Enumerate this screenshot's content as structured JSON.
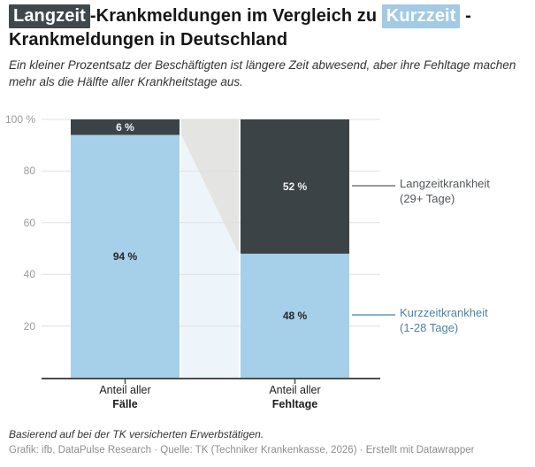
{
  "title": {
    "highlight_dark": "Langzeit",
    "after_dark": "-Krankmeldungen im Vergleich zu",
    "highlight_blue": "Kurzzeit",
    "after_blue": "-",
    "line2": "Krankmeldungen in Deutschland"
  },
  "subtitle": "Ein kleiner Prozentsatz der Beschäftigten ist längere Zeit abwesend, aber ihre Fehltage machen mehr als die Hälfte aller Krankheitstage aus.",
  "colors": {
    "tag_dark_bg": "#40484c",
    "tag_blue_bg": "#a3cae4",
    "grid": "#e0e0e0",
    "axis": "#4c4c4c",
    "title_text": "#161616"
  },
  "chart_data": {
    "type": "bar",
    "variant": "stacked-percentage-columns",
    "title": "Langzeit-Krankmeldungen im Vergleich zu Kurzzeit-Krankmeldungen in Deutschland",
    "categories": [
      {
        "line1": "Anteil aller",
        "line2": "Fälle"
      },
      {
        "line1": "Anteil aller",
        "line2": "Fehltage"
      }
    ],
    "series": [
      {
        "name": "Kurzzeitkrankheit (1-28 Tage)",
        "values": [
          94,
          48
        ],
        "labels": [
          "94 %",
          "48 %"
        ],
        "color": "#a6cfea",
        "label_color": "#262626",
        "connector_color": "#eef5fa"
      },
      {
        "name": "Langzeitkrankheit (29+ Tage)",
        "values": [
          6,
          52
        ],
        "labels": [
          "6 %",
          "52 %"
        ],
        "color": "#3c4347",
        "label_color": "#f2f2f2",
        "connector_color": "#e4e4e2"
      }
    ],
    "ylim": [
      0,
      100
    ],
    "yticks": [
      {
        "value": 20,
        "label": "20"
      },
      {
        "value": 40,
        "label": "40"
      },
      {
        "value": 60,
        "label": "60"
      },
      {
        "value": 80,
        "label": "80"
      },
      {
        "value": 100,
        "label": "100 %"
      }
    ],
    "grid": true,
    "legend_position": "right"
  },
  "legend": {
    "items": [
      {
        "line1": "Langzeitkrankheit",
        "line2": "(29+ Tage)",
        "text_color": "#53575a",
        "line_color": "#9a9a9a"
      },
      {
        "line1": "Kurzzeitkrankheit",
        "line2": "(1-28 Tage)",
        "text_color": "#4d82a6",
        "line_color": "#86b2d0"
      }
    ]
  },
  "footer": {
    "note": "Basierend auf bei der TK versicherten Erwerbstätigen.",
    "credits": "Grafik: ifb, DataPulse Research · Quelle: TK (Techniker Krankenkasse, 2026) · Erstellt mit Datawrapper"
  }
}
